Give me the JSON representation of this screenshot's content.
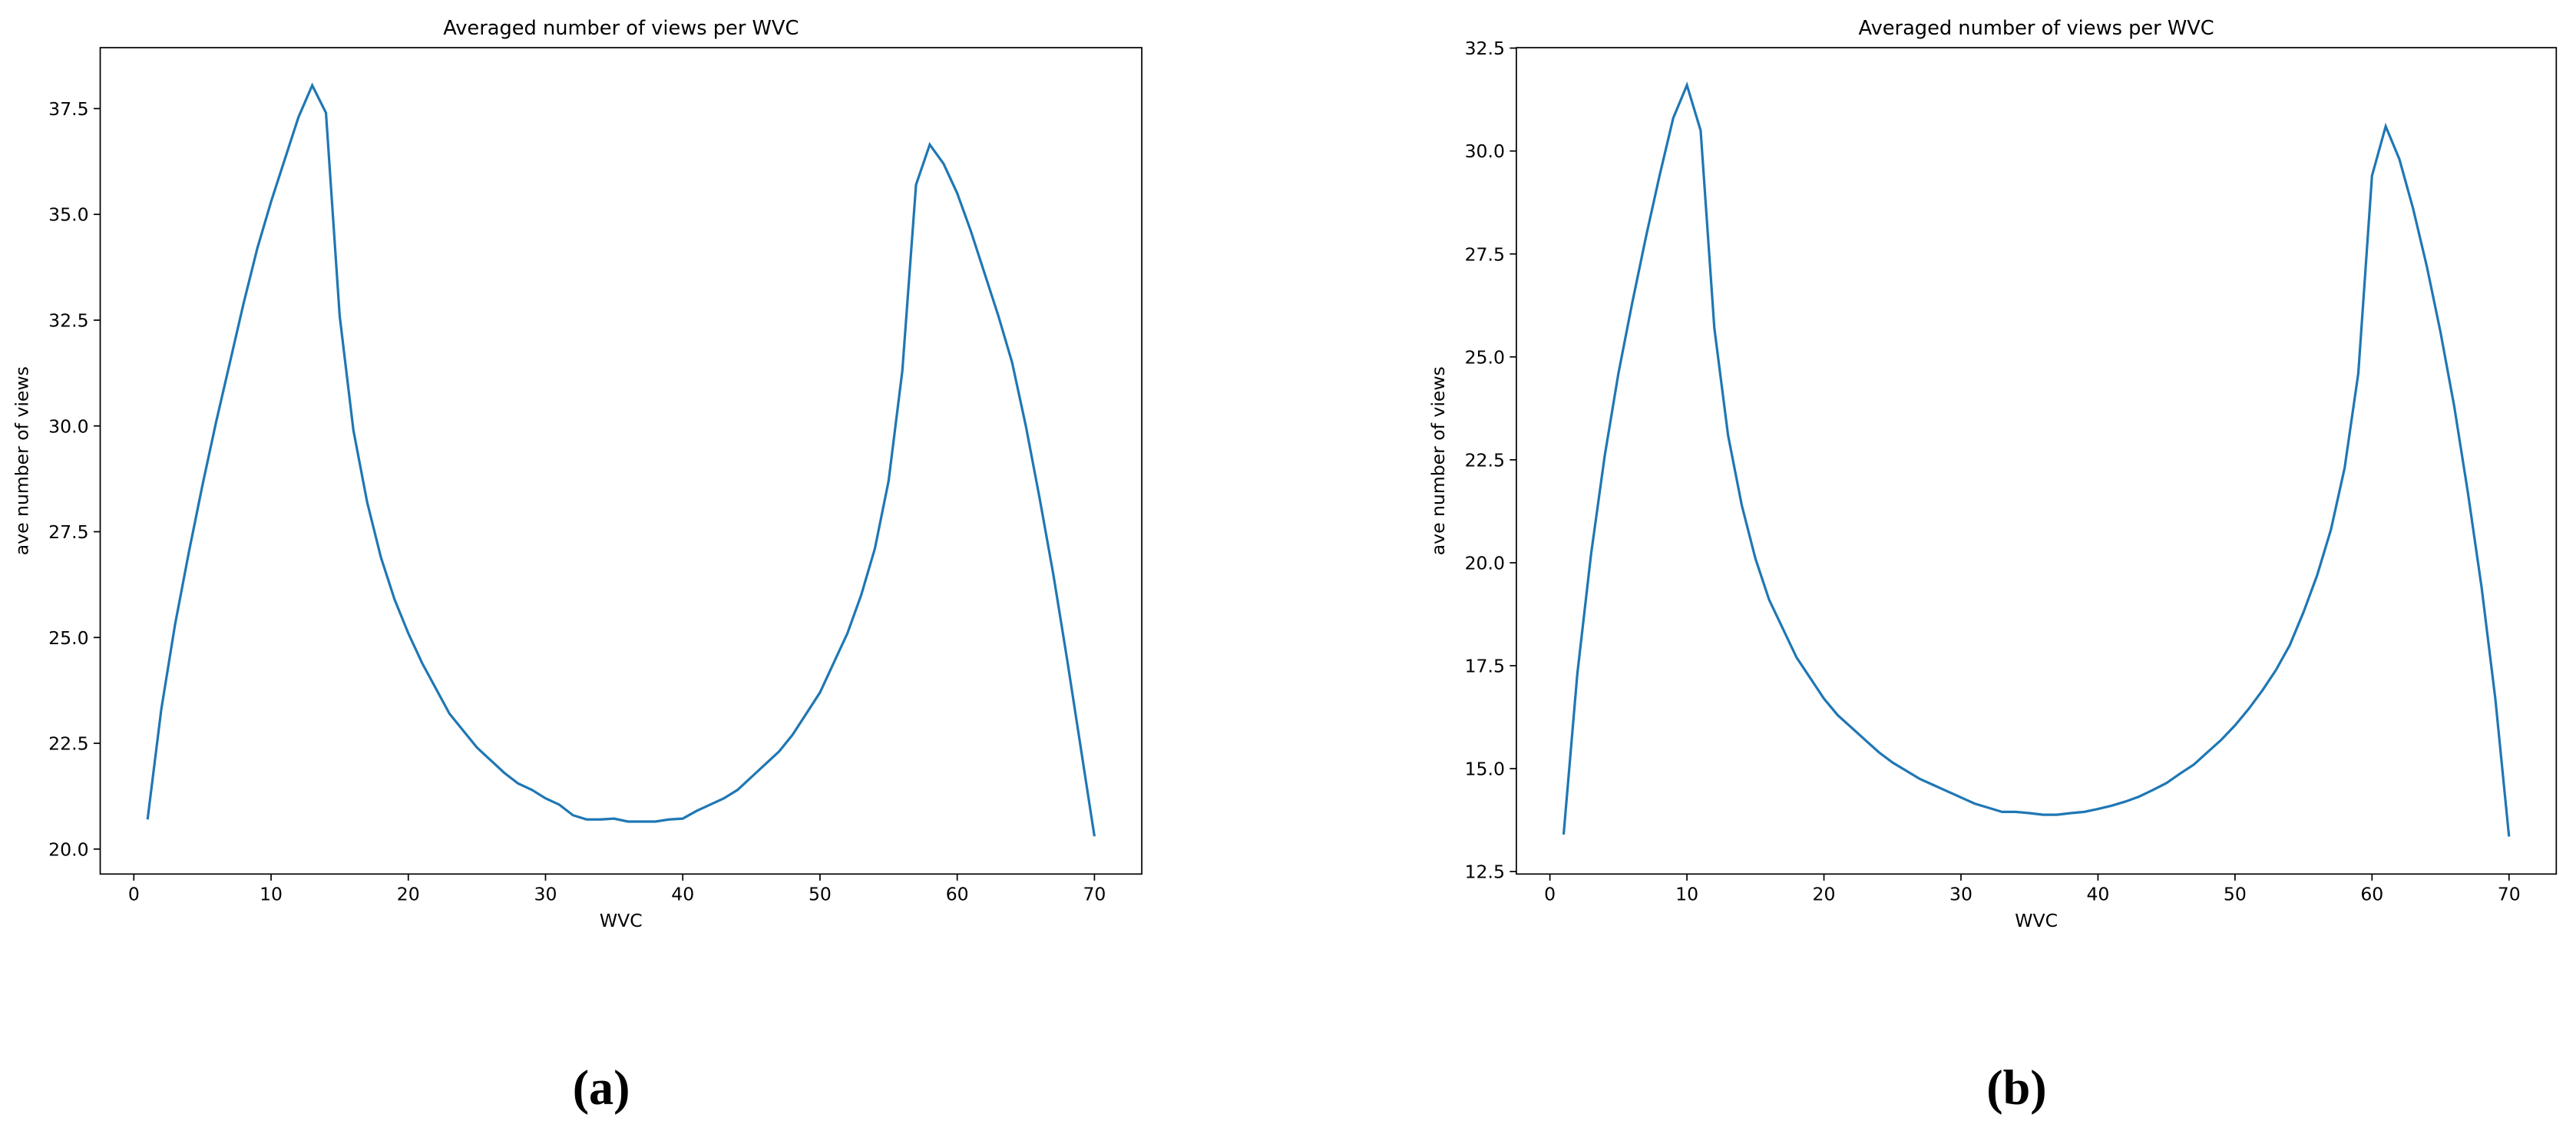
{
  "chart_data": [
    {
      "type": "line",
      "title": "Averaged number of views per WVC",
      "xlabel": "WVC",
      "ylabel": "ave number of views",
      "caption": "(a)",
      "x": [
        1,
        2,
        3,
        4,
        5,
        6,
        7,
        8,
        9,
        10,
        11,
        12,
        13,
        14,
        15,
        16,
        17,
        18,
        19,
        20,
        21,
        22,
        23,
        24,
        25,
        26,
        27,
        28,
        29,
        30,
        31,
        32,
        33,
        34,
        35,
        36,
        37,
        38,
        39,
        40,
        41,
        42,
        43,
        44,
        45,
        46,
        47,
        48,
        49,
        50,
        51,
        52,
        53,
        54,
        55,
        56,
        57,
        58,
        59,
        60,
        61,
        62,
        63,
        64,
        65,
        66,
        67,
        68,
        69,
        70
      ],
      "values": [
        20.7,
        23.3,
        25.3,
        27.0,
        28.6,
        30.1,
        31.5,
        32.9,
        34.2,
        35.3,
        36.3,
        37.3,
        38.05,
        37.4,
        32.6,
        29.9,
        28.2,
        26.9,
        25.9,
        25.1,
        24.4,
        23.8,
        23.2,
        22.8,
        22.4,
        22.1,
        21.8,
        21.55,
        21.4,
        21.2,
        21.05,
        20.8,
        20.7,
        20.7,
        20.72,
        20.65,
        20.65,
        20.65,
        20.7,
        20.72,
        20.9,
        21.05,
        21.2,
        21.4,
        21.7,
        22.0,
        22.3,
        22.7,
        23.2,
        23.7,
        24.4,
        25.1,
        26.0,
        27.1,
        28.7,
        31.3,
        35.7,
        36.65,
        36.2,
        35.5,
        34.6,
        33.6,
        32.6,
        31.5,
        30.0,
        28.3,
        26.5,
        24.5,
        22.4,
        20.3
      ],
      "color": "#1f77b4",
      "xlim": [
        -2.45,
        73.45
      ],
      "ylim": [
        19.41,
        38.94
      ],
      "xticks": [
        0,
        10,
        20,
        30,
        40,
        50,
        60,
        70
      ],
      "yticks": [
        {
          "value": 20,
          "label": "20.0"
        },
        22.5,
        {
          "value": 25,
          "label": "25.0"
        },
        27.5,
        {
          "value": 30,
          "label": "30.0"
        },
        32.5,
        {
          "value": 35,
          "label": "35.0"
        },
        37.5
      ],
      "grid": false
    },
    {
      "type": "line",
      "title": "Averaged number of views per WVC",
      "xlabel": "WVC",
      "ylabel": "ave number of views",
      "caption": "(b)",
      "x": [
        1,
        2,
        3,
        4,
        5,
        6,
        7,
        8,
        9,
        10,
        11,
        12,
        13,
        14,
        15,
        16,
        17,
        18,
        19,
        20,
        21,
        22,
        23,
        24,
        25,
        26,
        27,
        28,
        29,
        30,
        31,
        32,
        33,
        34,
        35,
        36,
        37,
        38,
        39,
        40,
        41,
        42,
        43,
        44,
        45,
        46,
        47,
        48,
        49,
        50,
        51,
        52,
        53,
        54,
        55,
        56,
        57,
        58,
        59,
        60,
        61,
        62,
        63,
        64,
        65,
        66,
        67,
        68,
        69,
        70
      ],
      "values": [
        13.4,
        17.3,
        20.2,
        22.6,
        24.6,
        26.3,
        27.9,
        29.4,
        30.8,
        31.6,
        30.5,
        25.7,
        23.1,
        21.4,
        20.1,
        19.1,
        18.4,
        17.7,
        17.2,
        16.7,
        16.3,
        16.0,
        15.7,
        15.4,
        15.15,
        14.95,
        14.75,
        14.6,
        14.45,
        14.3,
        14.15,
        14.05,
        13.95,
        13.95,
        13.92,
        13.88,
        13.88,
        13.92,
        13.95,
        14.02,
        14.1,
        14.2,
        14.32,
        14.48,
        14.65,
        14.88,
        15.1,
        15.4,
        15.7,
        16.05,
        16.45,
        16.9,
        17.4,
        18.0,
        18.8,
        19.7,
        20.8,
        22.3,
        24.6,
        29.4,
        30.6,
        29.8,
        28.6,
        27.2,
        25.6,
        23.8,
        21.7,
        19.4,
        16.7,
        13.35
      ],
      "color": "#1f77b4",
      "xlim": [
        -2.45,
        73.45
      ],
      "ylim": [
        12.44,
        32.51
      ],
      "xticks": [
        0,
        10,
        20,
        30,
        40,
        50,
        60,
        70
      ],
      "yticks": [
        12.5,
        {
          "value": 15,
          "label": "15.0"
        },
        17.5,
        {
          "value": 20,
          "label": "20.0"
        },
        22.5,
        {
          "value": 25,
          "label": "25.0"
        },
        27.5,
        {
          "value": 30,
          "label": "30.0"
        },
        32.5
      ],
      "grid": false
    }
  ]
}
